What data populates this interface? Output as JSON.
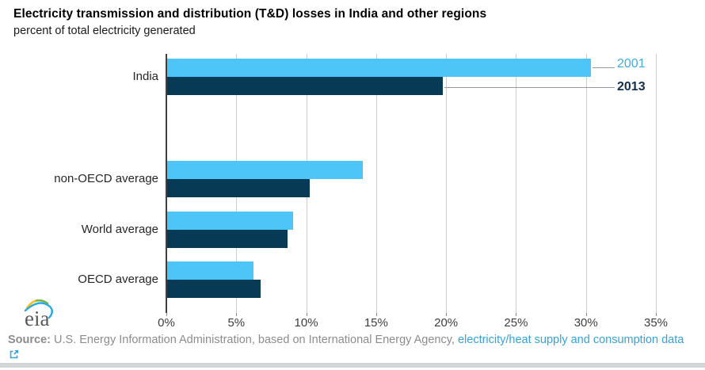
{
  "header": {
    "title": "Electricity transmission and distribution (T&D) losses in India and other regions",
    "subtitle": "percent of total electricity generated"
  },
  "chart_data": {
    "type": "bar",
    "orientation": "horizontal",
    "title": "Electricity transmission and distribution (T&D) losses in India and other regions",
    "subtitle": "percent of total electricity generated",
    "categories": [
      "India",
      "non-OECD average",
      "World average",
      "OECD average"
    ],
    "series": [
      {
        "name": "2001",
        "color": "#4dc6f7",
        "label_color": "#3fabe0",
        "values": [
          30.3,
          14.0,
          9.0,
          6.2
        ]
      },
      {
        "name": "2013",
        "color": "#073a55",
        "label_color": "#123049",
        "values": [
          19.7,
          10.2,
          8.6,
          6.7
        ]
      }
    ],
    "x_ticks": [
      "0%",
      "5%",
      "10%",
      "15%",
      "20%",
      "25%",
      "30%",
      "35%"
    ],
    "xlim": [
      0,
      35
    ],
    "grid": true,
    "legend_position": "right of India bars with leader lines"
  },
  "colors": {
    "grid": "#cccccc",
    "axis": "#3f3f3f",
    "leader_line": "#999999",
    "tick_label": "#3d3d3d",
    "category_label": "#262626",
    "footer_text": "#8c8c8c",
    "link": "#35a3d9",
    "divider": "#d2d5d6"
  },
  "branding": {
    "logo_text": "eia"
  },
  "footer": {
    "source_label": "Source:",
    "source_text": " U.S. Energy Information Administration, based on International Energy Agency, ",
    "link_text": "electricity/heat supply and consumption data",
    "external_link_icon": "external-link-icon"
  }
}
